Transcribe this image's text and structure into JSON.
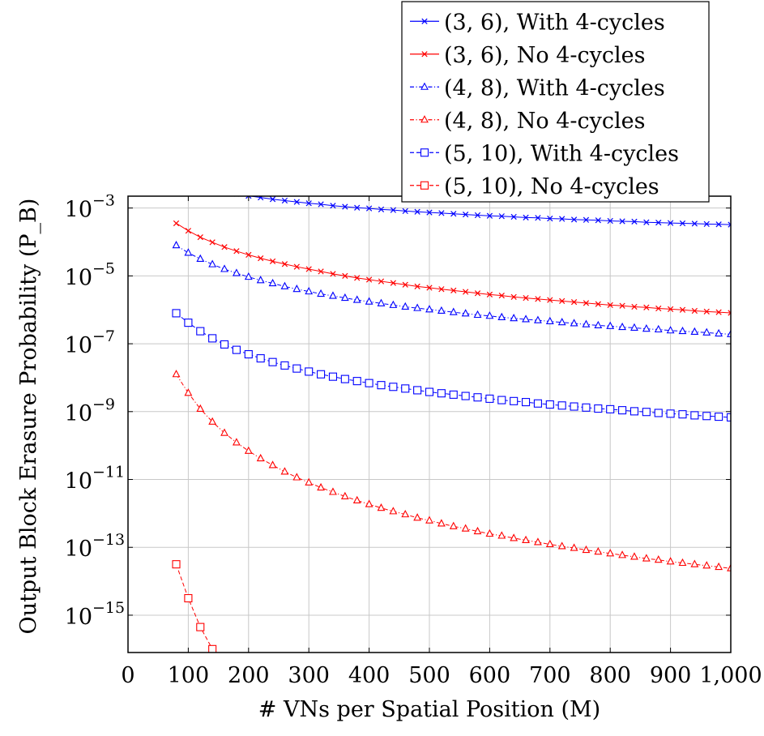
{
  "chart_data": {
    "type": "line",
    "title": "",
    "xlabel": "# VNs per Spatial Position (M)",
    "ylabel": "Output Block Erasure Probability (P_B)",
    "xlim": [
      0,
      1000
    ],
    "ylim_log10": [
      -16.1,
      -2.65
    ],
    "yscale": "log",
    "grid": true,
    "legend_position": "top-right, above plot",
    "x_ticks": [
      0,
      100,
      200,
      300,
      400,
      500,
      600,
      700,
      800,
      900,
      1000
    ],
    "x_tick_labels": [
      "0",
      "100",
      "200",
      "300",
      "400",
      "500",
      "600",
      "700",
      "800",
      "900",
      "1,000"
    ],
    "y_ticks_log10": [
      -15,
      -13,
      -11,
      -9,
      -7,
      -5,
      -3
    ],
    "y_tick_labels": [
      "10",
      "10",
      "10",
      "10",
      "10",
      "10",
      "10"
    ],
    "y_tick_exponents": [
      "−15",
      "−13",
      "−11",
      "−9",
      "−7",
      "−5",
      "−3"
    ],
    "x": [
      80,
      100,
      120,
      140,
      160,
      180,
      200,
      220,
      240,
      260,
      280,
      300,
      320,
      340,
      360,
      380,
      400,
      420,
      440,
      460,
      480,
      500,
      520,
      540,
      560,
      580,
      600,
      620,
      640,
      660,
      680,
      700,
      720,
      740,
      760,
      780,
      800,
      820,
      840,
      860,
      880,
      900,
      920,
      940,
      960,
      980,
      1000
    ],
    "series": [
      {
        "name": "(3, 6), With 4-cycles",
        "color": "#0000ff",
        "marker": "x",
        "line": "solid",
        "values_log10": [
          -2.15,
          -2.26,
          -2.36,
          -2.45,
          -2.52,
          -2.58,
          -2.64,
          -2.69,
          -2.74,
          -2.78,
          -2.82,
          -2.86,
          -2.89,
          -2.93,
          -2.96,
          -2.99,
          -3.01,
          -3.04,
          -3.06,
          -3.09,
          -3.11,
          -3.13,
          -3.15,
          -3.17,
          -3.19,
          -3.21,
          -3.23,
          -3.24,
          -3.26,
          -3.28,
          -3.29,
          -3.31,
          -3.32,
          -3.34,
          -3.35,
          -3.36,
          -3.38,
          -3.39,
          -3.4,
          -3.42,
          -3.43,
          -3.44,
          -3.45,
          -3.46,
          -3.47,
          -3.48,
          -3.49
        ]
      },
      {
        "name": "(3, 6), No 4-cycles",
        "color": "#ff0000",
        "marker": "x",
        "line": "solid",
        "values_log10": [
          -3.45,
          -3.67,
          -3.86,
          -4.01,
          -4.15,
          -4.27,
          -4.38,
          -4.48,
          -4.57,
          -4.65,
          -4.73,
          -4.8,
          -4.87,
          -4.94,
          -5.0,
          -5.06,
          -5.11,
          -5.16,
          -5.21,
          -5.26,
          -5.31,
          -5.35,
          -5.39,
          -5.43,
          -5.47,
          -5.51,
          -5.55,
          -5.58,
          -5.62,
          -5.65,
          -5.68,
          -5.71,
          -5.74,
          -5.77,
          -5.8,
          -5.83,
          -5.86,
          -5.88,
          -5.91,
          -5.93,
          -5.96,
          -5.98,
          -6.0,
          -6.03,
          -6.05,
          -6.07,
          -6.09
        ]
      },
      {
        "name": "(4, 8), With 4-cycles",
        "color": "#0000ff",
        "marker": "triangle",
        "line": "dash-dot",
        "values_log10": [
          -4.1,
          -4.32,
          -4.5,
          -4.66,
          -4.8,
          -4.92,
          -5.03,
          -5.13,
          -5.22,
          -5.31,
          -5.39,
          -5.46,
          -5.53,
          -5.59,
          -5.65,
          -5.71,
          -5.76,
          -5.81,
          -5.86,
          -5.91,
          -5.95,
          -5.99,
          -6.03,
          -6.07,
          -6.11,
          -6.15,
          -6.18,
          -6.22,
          -6.25,
          -6.28,
          -6.31,
          -6.34,
          -6.37,
          -6.4,
          -6.43,
          -6.46,
          -6.48,
          -6.51,
          -6.53,
          -6.56,
          -6.58,
          -6.61,
          -6.63,
          -6.65,
          -6.67,
          -6.7,
          -6.72
        ]
      },
      {
        "name": "(4, 8), No 4-cycles",
        "color": "#ff0000",
        "marker": "triangle",
        "line": "dash-dot",
        "values_log10": [
          -7.9,
          -8.45,
          -8.92,
          -9.3,
          -9.63,
          -9.91,
          -10.16,
          -10.38,
          -10.58,
          -10.77,
          -10.94,
          -11.09,
          -11.24,
          -11.37,
          -11.5,
          -11.62,
          -11.73,
          -11.84,
          -11.94,
          -12.03,
          -12.13,
          -12.21,
          -12.3,
          -12.38,
          -12.45,
          -12.53,
          -12.6,
          -12.66,
          -12.73,
          -12.79,
          -12.85,
          -12.91,
          -12.97,
          -13.02,
          -13.08,
          -13.13,
          -13.18,
          -13.23,
          -13.28,
          -13.33,
          -13.37,
          -13.42,
          -13.46,
          -13.5,
          -13.54,
          -13.58,
          -13.62
        ]
      },
      {
        "name": "(5, 10), With 4-cycles",
        "color": "#0000ff",
        "marker": "square",
        "line": "dashed",
        "values_log10": [
          -6.1,
          -6.38,
          -6.63,
          -6.84,
          -7.02,
          -7.18,
          -7.31,
          -7.43,
          -7.54,
          -7.64,
          -7.73,
          -7.82,
          -7.9,
          -7.97,
          -8.04,
          -8.1,
          -8.16,
          -8.22,
          -8.27,
          -8.32,
          -8.37,
          -8.42,
          -8.46,
          -8.5,
          -8.54,
          -8.58,
          -8.62,
          -8.66,
          -8.69,
          -8.72,
          -8.76,
          -8.79,
          -8.82,
          -8.85,
          -8.88,
          -8.91,
          -8.93,
          -8.96,
          -8.99,
          -9.01,
          -9.04,
          -9.06,
          -9.08,
          -9.11,
          -9.13,
          -9.15,
          -9.17
        ]
      },
      {
        "name": "(5, 10), No 4-cycles",
        "color": "#ff0000",
        "marker": "square",
        "line": "dashed",
        "x": [
          80,
          100,
          120,
          140
        ],
        "values_log10": [
          -13.5,
          -14.5,
          -15.35,
          -16.0
        ]
      }
    ]
  }
}
